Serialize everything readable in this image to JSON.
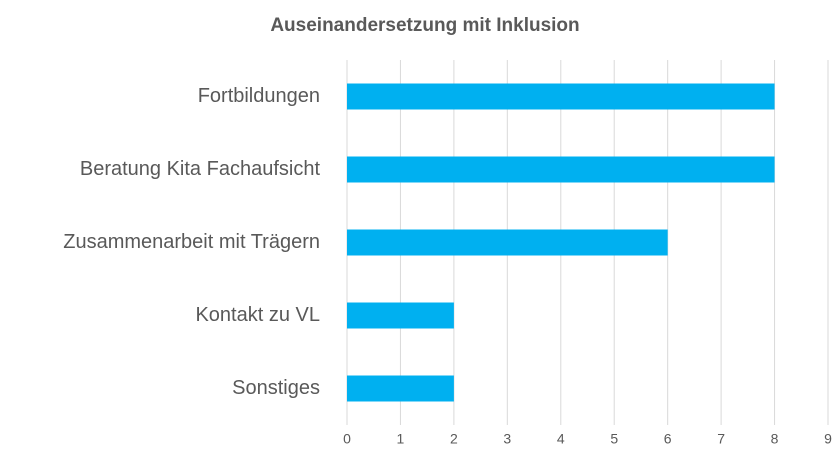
{
  "chart_data": {
    "type": "bar",
    "orientation": "horizontal",
    "title": "Auseinandersetzung mit Inklusion",
    "categories": [
      "Fortbildungen",
      "Beratung Kita Fachaufsicht",
      "Zusammenarbeit mit Trägern",
      "Kontakt zu VL",
      "Sonstiges"
    ],
    "values": [
      8,
      8,
      6,
      2,
      2
    ],
    "color": "#00b0f0",
    "xlim": [
      0,
      9
    ],
    "xticks": [
      0,
      1,
      2,
      3,
      4,
      5,
      6,
      7,
      8,
      9
    ],
    "grid": true
  }
}
